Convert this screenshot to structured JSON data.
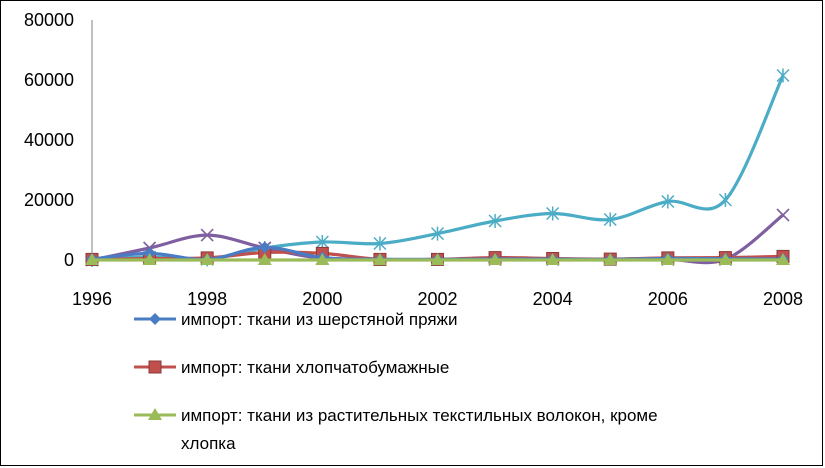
{
  "chart_data": {
    "type": "line",
    "title": "",
    "xlabel": "",
    "ylabel": "",
    "x": [
      1996,
      1997,
      1998,
      1999,
      2000,
      2001,
      2002,
      2003,
      2004,
      2005,
      2006,
      2007,
      2008
    ],
    "xticks": [
      "1996",
      "1998",
      "2000",
      "2002",
      "2004",
      "2006",
      "2008"
    ],
    "xlim": [
      1996,
      2008
    ],
    "ylim": [
      0,
      80000
    ],
    "yticks": [
      "0",
      "20000",
      "40000",
      "60000",
      "80000"
    ],
    "grid": false,
    "legend_position": "bottom",
    "smooth": true,
    "series": [
      {
        "name": "импорт: ткани из шерстяной пряжи",
        "color": "#4a7cc4",
        "marker": "diamond",
        "values": [
          300,
          2200,
          200,
          4200,
          800,
          200,
          200,
          300,
          300,
          200,
          500,
          400,
          300
        ]
      },
      {
        "name": "импорт: ткани хлопчатобумажные",
        "color": "#c0504d",
        "marker": "square",
        "values": [
          200,
          500,
          700,
          2500,
          2200,
          200,
          200,
          800,
          500,
          300,
          700,
          800,
          1200
        ]
      },
      {
        "name": "импорт:  ткани из растительных текстильных волокон, кроме хлопка",
        "name_lines": [
          "импорт:  ткани из растительных текстильных волокон, кроме",
          "хлопка"
        ],
        "color": "#9bbb59",
        "marker": "triangle",
        "values": [
          0,
          0,
          0,
          0,
          0,
          0,
          0,
          0,
          0,
          0,
          0,
          0,
          0
        ]
      },
      {
        "name": "",
        "color": "#7f5fa0",
        "marker": "x",
        "values": [
          0,
          4000,
          8300,
          4000,
          500,
          200,
          200,
          200,
          200,
          200,
          200,
          200,
          15000
        ]
      },
      {
        "name": "",
        "color": "#4bacc6",
        "marker": "star",
        "values": [
          0,
          1000,
          200,
          4000,
          6000,
          5500,
          8800,
          13000,
          15500,
          13500,
          19500,
          20000,
          61500
        ]
      }
    ]
  }
}
